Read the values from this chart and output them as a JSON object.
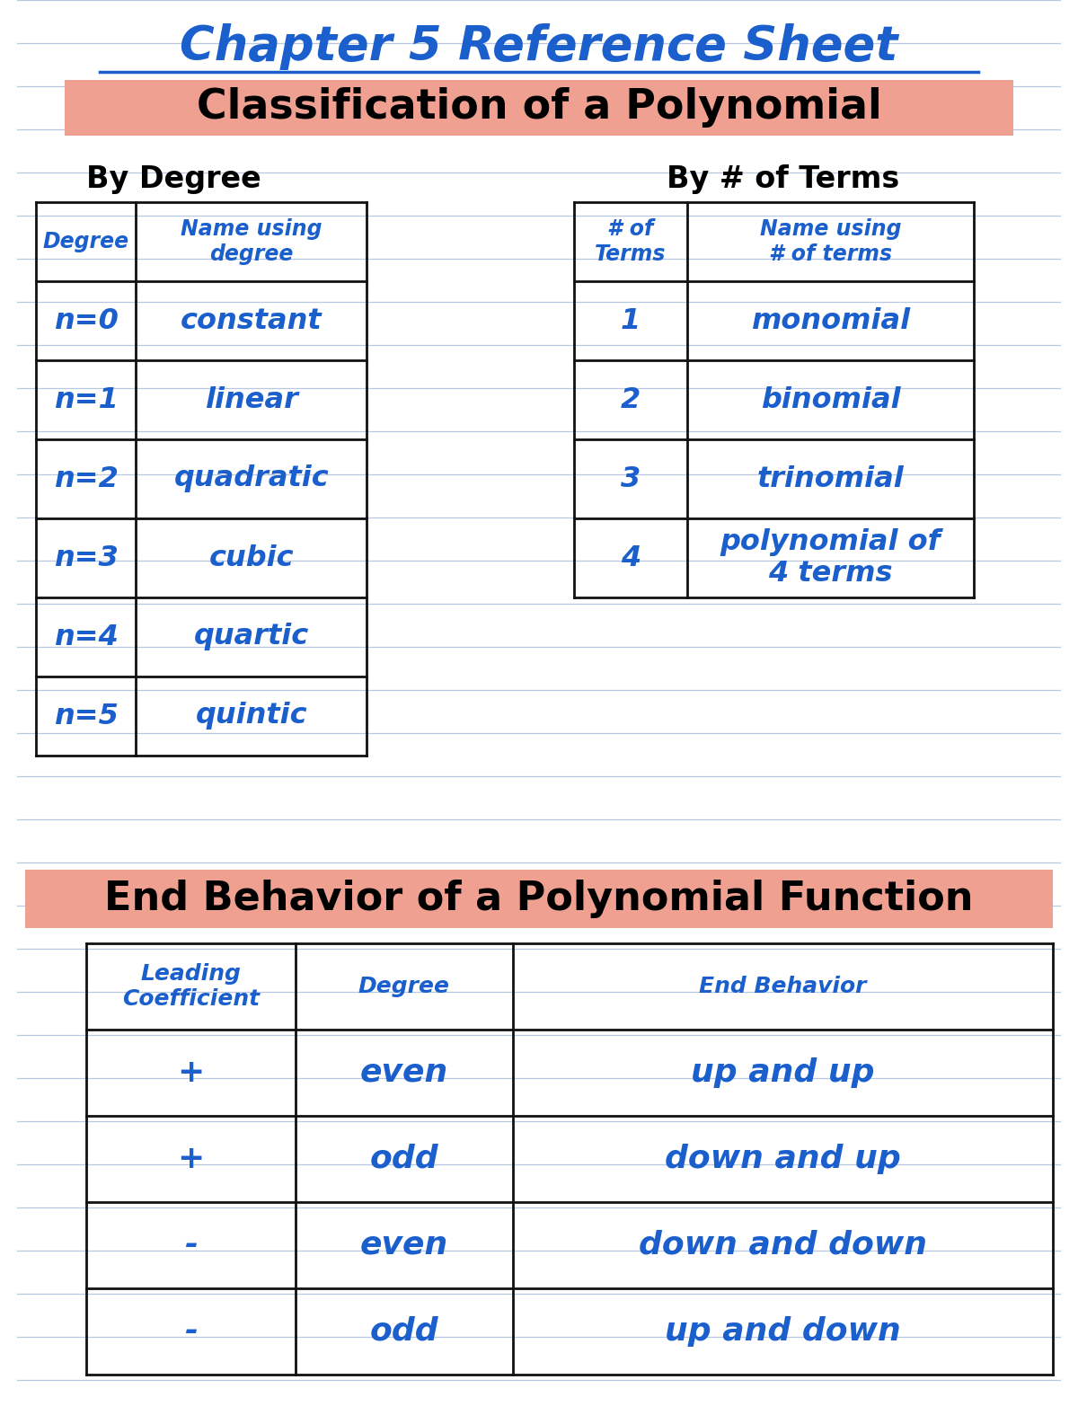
{
  "title": "Chapter 5 Reference Sheet",
  "subtitle": "Classification of a Polynomial",
  "subtitle2": "End Behavior of a Polynomial Function",
  "bg_color": "#ffffff",
  "notebook_line_color": "#b8c8e0",
  "salmon_color": "#f0a090",
  "title_color": "#1a5fcc",
  "text_color": "#1a5fcc",
  "black_text": "#000000",
  "table_line_color": "#111111",
  "by_degree_label": "By Degree",
  "by_terms_label": "By # of Terms",
  "degree_table_headers": [
    "Degree",
    "Name using\ndegree"
  ],
  "degree_table_rows": [
    [
      "n=0",
      "constant"
    ],
    [
      "n=1",
      "linear"
    ],
    [
      "n=2",
      "quadratic"
    ],
    [
      "n=3",
      "cubic"
    ],
    [
      "n=4",
      "quartic"
    ],
    [
      "n=5",
      "quintic"
    ]
  ],
  "terms_table_headers": [
    "# of\nTerms",
    "Name using\n# of terms"
  ],
  "terms_table_rows": [
    [
      "1",
      "monomial"
    ],
    [
      "2",
      "binomial"
    ],
    [
      "3",
      "trinomial"
    ],
    [
      "4",
      "polynomial of\n4 terms"
    ]
  ],
  "end_table_headers": [
    "Leading\nCoefficient",
    "Degree",
    "End Behavior"
  ],
  "end_table_rows": [
    [
      "+",
      "even",
      "up and up"
    ],
    [
      "+",
      "odd",
      "down and up"
    ],
    [
      "-",
      "even",
      "down and down"
    ],
    [
      "-",
      "odd",
      "up and down"
    ]
  ],
  "figw": 12.0,
  "figh": 15.75,
  "dpi": 100
}
